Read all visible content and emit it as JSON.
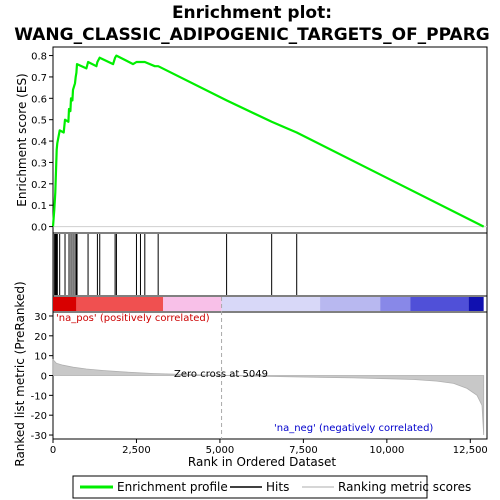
{
  "title_line1": "Enrichment plot:",
  "title_line2": "WANG_CLASSIC_ADIPOGENIC_TARGETS_OF_PPARG",
  "chart_data": {
    "type": "line",
    "panels": [
      "enrichment-score",
      "hits",
      "ranking-metric"
    ],
    "es_ylabel": "Enrichment score (ES)",
    "metric_ylabel": "Ranked list metric (PreRanked)",
    "xlabel": "Rank in Ordered Dataset",
    "x_range": [
      0,
      13000
    ],
    "x_ticks": [
      0,
      2500,
      5000,
      7500,
      10000,
      12500
    ],
    "x_tick_labels": [
      "0",
      "2,500",
      "5,000",
      "7,500",
      "10,000",
      "12,500"
    ],
    "es_range": [
      -0.03,
      0.84
    ],
    "es_ticks": [
      0.0,
      0.1,
      0.2,
      0.3,
      0.4,
      0.5,
      0.6,
      0.7,
      0.8
    ],
    "es_tick_labels": [
      "0.0",
      "0.1",
      "0.2",
      "0.3",
      "0.4",
      "0.5",
      "0.6",
      "0.7",
      "0.8"
    ],
    "metric_range": [
      -32,
      32
    ],
    "metric_ticks": [
      30,
      20,
      10,
      0,
      -10,
      -20,
      -30
    ],
    "metric_tick_labels": [
      "30",
      "20",
      "10",
      "0",
      "-10",
      "-20",
      "-30"
    ],
    "enrichment_profile": [
      [
        0,
        0.0
      ],
      [
        40,
        0.08
      ],
      [
        70,
        0.16
      ],
      [
        90,
        0.26
      ],
      [
        110,
        0.36
      ],
      [
        130,
        0.39
      ],
      [
        200,
        0.45
      ],
      [
        320,
        0.44
      ],
      [
        360,
        0.5
      ],
      [
        460,
        0.49
      ],
      [
        480,
        0.55
      ],
      [
        520,
        0.54
      ],
      [
        540,
        0.6
      ],
      [
        580,
        0.59
      ],
      [
        600,
        0.64
      ],
      [
        660,
        0.67
      ],
      [
        680,
        0.7
      ],
      [
        700,
        0.72
      ],
      [
        720,
        0.76
      ],
      [
        1000,
        0.74
      ],
      [
        1050,
        0.77
      ],
      [
        1300,
        0.75
      ],
      [
        1330,
        0.77
      ],
      [
        1400,
        0.79
      ],
      [
        1800,
        0.76
      ],
      [
        1860,
        0.79
      ],
      [
        1900,
        0.8
      ],
      [
        2400,
        0.76
      ],
      [
        2500,
        0.77
      ],
      [
        2620,
        0.77
      ],
      [
        2750,
        0.77
      ],
      [
        3050,
        0.75
      ],
      [
        3150,
        0.75
      ],
      [
        5200,
        0.59
      ],
      [
        6550,
        0.49
      ],
      [
        7300,
        0.44
      ],
      [
        12900,
        0.0
      ]
    ],
    "hits": [
      40,
      70,
      90,
      110,
      130,
      200,
      360,
      480,
      540,
      600,
      660,
      700,
      720,
      1050,
      1330,
      1400,
      1860,
      1900,
      2500,
      2620,
      2750,
      3150,
      5200,
      6550,
      7300
    ],
    "metric_curve": [
      [
        0,
        8
      ],
      [
        100,
        6.2
      ],
      [
        300,
        5.2
      ],
      [
        600,
        4.2
      ],
      [
        1000,
        3.3
      ],
      [
        1500,
        2.5
      ],
      [
        2000,
        1.9
      ],
      [
        2500,
        1.4
      ],
      [
        3000,
        1.0
      ],
      [
        4000,
        0.5
      ],
      [
        5049,
        0
      ],
      [
        6000,
        -0.3
      ],
      [
        7000,
        -0.6
      ],
      [
        8000,
        -0.9
      ],
      [
        9000,
        -1.2
      ],
      [
        10000,
        -1.6
      ],
      [
        10800,
        -2.0
      ],
      [
        11500,
        -2.8
      ],
      [
        12000,
        -4.0
      ],
      [
        12400,
        -6.5
      ],
      [
        12700,
        -10
      ],
      [
        12850,
        -15
      ],
      [
        12900,
        -30
      ]
    ],
    "zero_cross": 5049,
    "zero_cross_label": "Zero cross at 5049",
    "pos_label": "'na_pos' (positively correlated)",
    "neg_label": "'na_neg' (negatively correlated)",
    "legend": [
      "Enrichment profile",
      "Hits",
      "Ranking metric scores"
    ],
    "colors": {
      "profile": "#00ee00",
      "hits": "#000000",
      "metric": "#c8c8c8",
      "pos_label": "#cc0000",
      "neg_label": "#0000cc",
      "zero_line": "#aaaaaa"
    },
    "heat_segments": [
      {
        "from": 0,
        "to": 700,
        "color": "#d80000"
      },
      {
        "from": 700,
        "to": 3300,
        "color": "#f05050"
      },
      {
        "from": 3300,
        "to": 5049,
        "color": "#f8c0e8"
      },
      {
        "from": 5049,
        "to": 8000,
        "color": "#d8d8f8"
      },
      {
        "from": 8000,
        "to": 9800,
        "color": "#b8b8f0"
      },
      {
        "from": 9800,
        "to": 10700,
        "color": "#8888e8"
      },
      {
        "from": 10700,
        "to": 12450,
        "color": "#5050d8"
      },
      {
        "from": 12450,
        "to": 12900,
        "color": "#1010b0"
      }
    ]
  }
}
